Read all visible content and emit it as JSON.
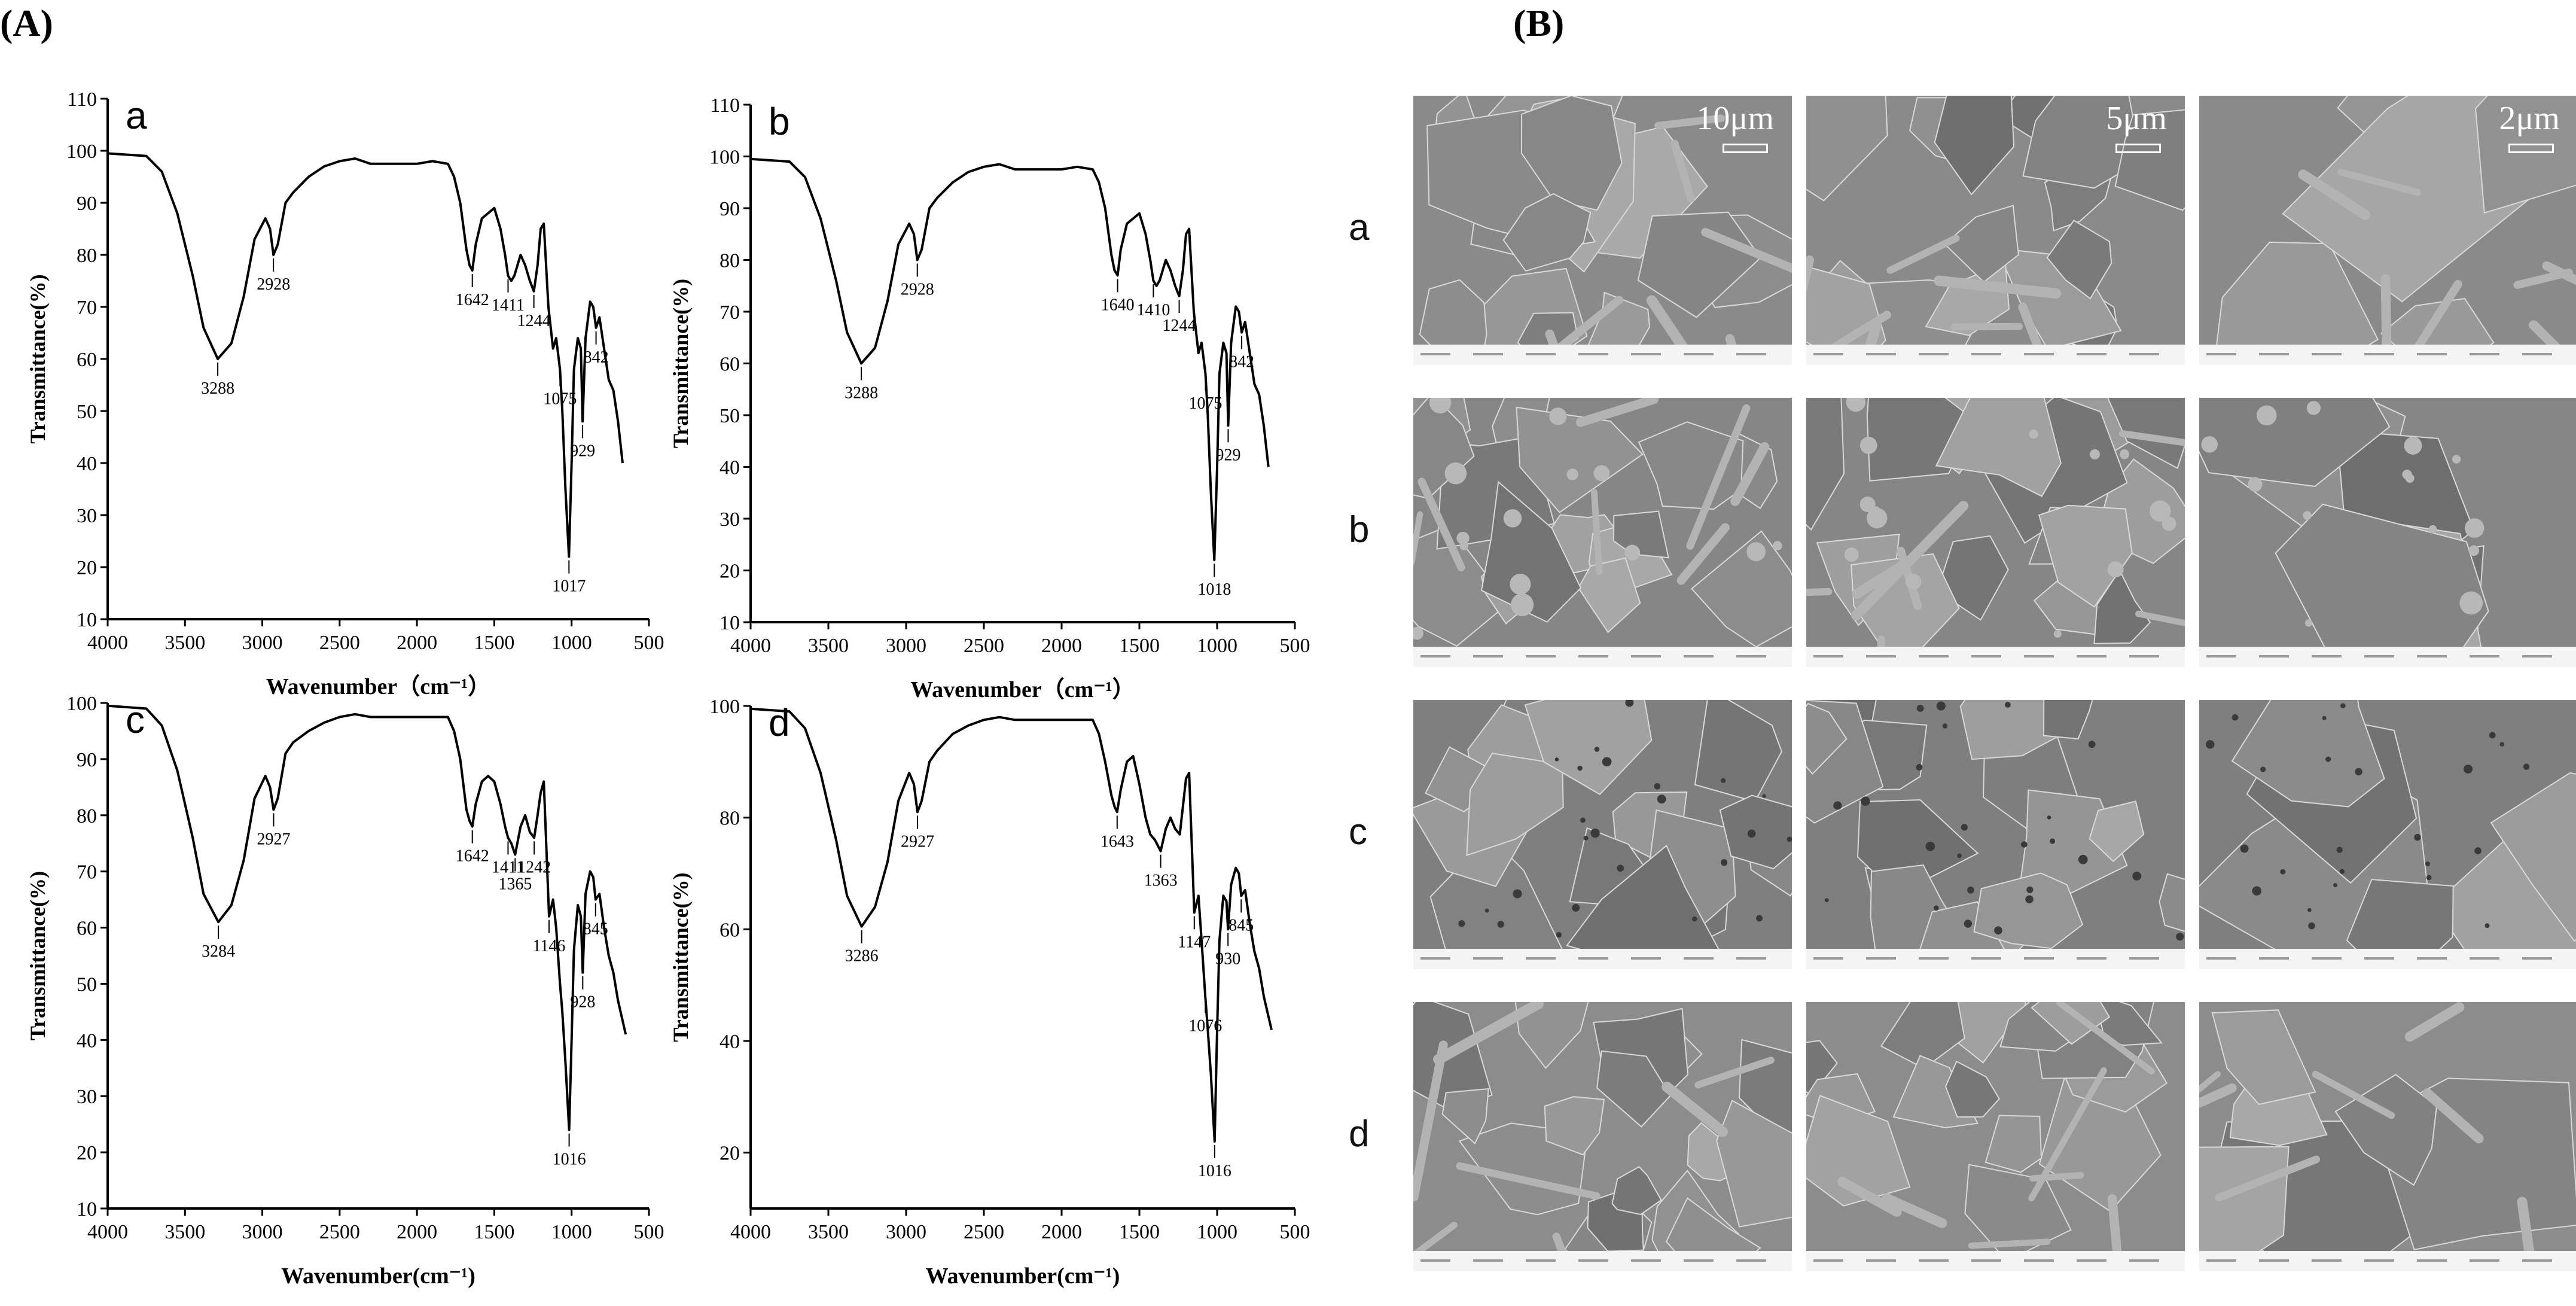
{
  "figure": {
    "panel_a_label": "(A)",
    "panel_b_label": "(B)"
  },
  "chart_data": [
    {
      "type": "line",
      "panel": "a",
      "xlabel": "Wavenumber（cm⁻¹）",
      "ylabel": "Transmittance(%)",
      "xlim": [
        4000,
        500
      ],
      "ylim": [
        10,
        110
      ],
      "x_ticks": [
        4000,
        3500,
        3000,
        2500,
        2000,
        1500,
        1000,
        500
      ],
      "y_ticks": [
        10,
        20,
        30,
        40,
        50,
        60,
        70,
        80,
        90,
        100,
        110
      ],
      "series": [
        {
          "x": [
            4000,
            3750,
            3650,
            3550,
            3450,
            3380,
            3288,
            3200,
            3120,
            3050,
            2980,
            2950,
            2928,
            2900,
            2850,
            2800,
            2700,
            2600,
            2500,
            2400,
            2300,
            2200,
            2100,
            2000,
            1900,
            1800,
            1760,
            1720,
            1680,
            1660,
            1642,
            1620,
            1580,
            1540,
            1500,
            1460,
            1430,
            1411,
            1390,
            1370,
            1330,
            1300,
            1270,
            1244,
            1220,
            1200,
            1180,
            1150,
            1120,
            1100,
            1075,
            1060,
            1040,
            1017,
            1000,
            985,
            960,
            940,
            929,
            910,
            880,
            860,
            842,
            820,
            790,
            760,
            730,
            700,
            670
          ],
          "y": [
            99.5,
            99,
            96,
            88,
            76,
            66,
            60,
            63,
            72,
            83,
            87,
            85,
            80,
            82,
            90,
            92,
            95,
            97,
            98,
            98.5,
            97.5,
            97.5,
            97.5,
            97.5,
            98,
            97.5,
            95,
            90,
            81,
            78,
            77,
            82,
            87,
            88,
            89,
            85,
            80,
            76,
            75,
            76,
            80,
            78,
            75,
            73,
            78,
            85,
            86,
            70,
            62,
            64,
            58,
            50,
            35,
            22,
            40,
            58,
            64,
            62,
            48,
            64,
            71,
            70,
            66,
            68,
            62,
            56,
            54,
            48,
            40
          ]
        }
      ],
      "annotations": [
        "3288",
        "2928",
        "1642",
        "1411",
        "1244",
        "1075",
        "1017",
        "929",
        "842"
      ]
    },
    {
      "type": "line",
      "panel": "b",
      "xlabel": "Wavenumber（cm⁻¹）",
      "ylabel": "Transmittance(%)",
      "xlim": [
        4000,
        500
      ],
      "ylim": [
        10,
        110
      ],
      "x_ticks": [
        4000,
        3500,
        3000,
        2500,
        2000,
        1500,
        1000,
        500
      ],
      "y_ticks": [
        10,
        20,
        30,
        40,
        50,
        60,
        70,
        80,
        90,
        100,
        110
      ],
      "series": [
        {
          "x": [
            4000,
            3750,
            3650,
            3550,
            3450,
            3380,
            3288,
            3200,
            3120,
            3050,
            2980,
            2950,
            2928,
            2900,
            2850,
            2800,
            2700,
            2600,
            2500,
            2400,
            2300,
            2200,
            2100,
            2000,
            1900,
            1800,
            1760,
            1720,
            1680,
            1660,
            1640,
            1620,
            1580,
            1540,
            1500,
            1460,
            1430,
            1410,
            1390,
            1370,
            1330,
            1300,
            1270,
            1244,
            1220,
            1200,
            1180,
            1150,
            1120,
            1100,
            1075,
            1060,
            1040,
            1018,
            1000,
            985,
            960,
            940,
            929,
            910,
            880,
            860,
            842,
            820,
            790,
            760,
            730,
            700,
            670
          ],
          "y": [
            99.5,
            99,
            96,
            88,
            76,
            66,
            60,
            63,
            72,
            83,
            87,
            85,
            80,
            82,
            90,
            92,
            95,
            97,
            98,
            98.5,
            97.5,
            97.5,
            97.5,
            97.5,
            98,
            97.5,
            95,
            90,
            81,
            78,
            77,
            82,
            87,
            88,
            89,
            85,
            80,
            76,
            75,
            76,
            80,
            78,
            75,
            73,
            78,
            85,
            86,
            70,
            62,
            64,
            58,
            50,
            35,
            22,
            40,
            58,
            64,
            62,
            48,
            64,
            71,
            70,
            66,
            68,
            62,
            56,
            54,
            48,
            40
          ]
        }
      ],
      "annotations": [
        "3288",
        "2928",
        "1640",
        "1410",
        "1244",
        "1075",
        "1018",
        "929",
        "842"
      ]
    },
    {
      "type": "line",
      "panel": "c",
      "xlabel": "Wavenumber(cm⁻¹)",
      "ylabel": "Transmittance(%)",
      "xlim": [
        4000,
        500
      ],
      "ylim": [
        10,
        100
      ],
      "x_ticks": [
        4000,
        3500,
        3000,
        2500,
        2000,
        1500,
        1000,
        500
      ],
      "y_ticks": [
        10,
        20,
        30,
        40,
        50,
        60,
        70,
        80,
        90,
        100
      ],
      "series": [
        {
          "x": [
            4000,
            3750,
            3650,
            3550,
            3450,
            3380,
            3284,
            3200,
            3120,
            3050,
            2980,
            2950,
            2927,
            2900,
            2850,
            2800,
            2700,
            2600,
            2500,
            2400,
            2300,
            2200,
            2100,
            2000,
            1900,
            1800,
            1760,
            1720,
            1680,
            1660,
            1642,
            1620,
            1580,
            1540,
            1500,
            1460,
            1430,
            1411,
            1390,
            1365,
            1330,
            1300,
            1270,
            1242,
            1220,
            1200,
            1180,
            1146,
            1120,
            1100,
            1075,
            1060,
            1040,
            1016,
            1000,
            985,
            960,
            940,
            928,
            910,
            880,
            860,
            845,
            820,
            790,
            760,
            730,
            700,
            650
          ],
          "y": [
            99.5,
            99,
            96,
            88,
            76,
            66,
            61,
            64,
            72,
            83,
            87,
            85,
            81,
            83,
            91,
            93,
            95,
            96.5,
            97.5,
            98,
            97.5,
            97.5,
            97.5,
            97.5,
            97.5,
            97.5,
            95,
            90,
            81,
            79,
            78,
            82,
            86,
            87,
            86,
            82,
            78,
            76,
            75,
            73,
            78,
            80,
            77,
            76,
            80,
            84,
            86,
            62,
            65,
            60,
            50,
            45,
            36,
            24,
            40,
            56,
            64,
            62,
            52,
            66,
            70,
            69,
            65,
            66,
            60,
            55,
            52,
            47,
            41
          ]
        }
      ],
      "annotations": [
        "3284",
        "2927",
        "1642",
        "1411",
        "1365",
        "1242",
        "1146",
        "1016",
        "928",
        "845"
      ]
    },
    {
      "type": "line",
      "panel": "d",
      "xlabel": "Wavenumber(cm⁻¹)",
      "ylabel": "Transmittance(%)",
      "xlim": [
        4000,
        500
      ],
      "ylim": [
        10,
        100
      ],
      "x_ticks": [
        4000,
        3500,
        3000,
        2500,
        2000,
        1500,
        1000,
        500
      ],
      "y_ticks": [
        20,
        40,
        60,
        80,
        100
      ],
      "series": [
        {
          "x": [
            4000,
            3750,
            3650,
            3550,
            3450,
            3380,
            3286,
            3200,
            3120,
            3050,
            2980,
            2950,
            2927,
            2900,
            2850,
            2800,
            2700,
            2600,
            2500,
            2400,
            2300,
            2200,
            2100,
            2000,
            1900,
            1800,
            1760,
            1720,
            1680,
            1660,
            1643,
            1620,
            1580,
            1540,
            1500,
            1460,
            1430,
            1400,
            1363,
            1330,
            1300,
            1270,
            1240,
            1220,
            1200,
            1180,
            1147,
            1120,
            1100,
            1076,
            1060,
            1040,
            1016,
            1000,
            985,
            960,
            940,
            930,
            910,
            880,
            860,
            845,
            820,
            790,
            760,
            730,
            700,
            650
          ],
          "y": [
            99.5,
            99,
            96,
            88,
            76,
            66,
            60.5,
            64,
            72,
            83,
            88,
            86,
            81,
            83,
            90,
            92,
            95,
            96.5,
            97.5,
            98,
            97.5,
            97.5,
            97.5,
            97.5,
            97.5,
            97.5,
            95,
            90,
            84,
            82,
            81,
            85,
            90,
            91,
            86,
            80,
            77,
            76,
            74,
            78,
            80,
            78,
            77,
            82,
            87,
            88,
            63,
            66,
            58,
            48,
            42,
            34,
            22,
            42,
            58,
            66,
            65,
            60,
            68,
            71,
            70,
            66,
            67,
            61,
            56,
            53,
            48,
            42
          ]
        }
      ],
      "annotations": [
        "3286",
        "2927",
        "1643",
        "1363",
        "1147",
        "1076",
        "1016",
        "930",
        "845"
      ]
    }
  ],
  "sem": {
    "row_labels": [
      "a",
      "b",
      "c",
      "d"
    ],
    "scale_bars": [
      "10μm",
      "5μm",
      "2μm"
    ]
  }
}
